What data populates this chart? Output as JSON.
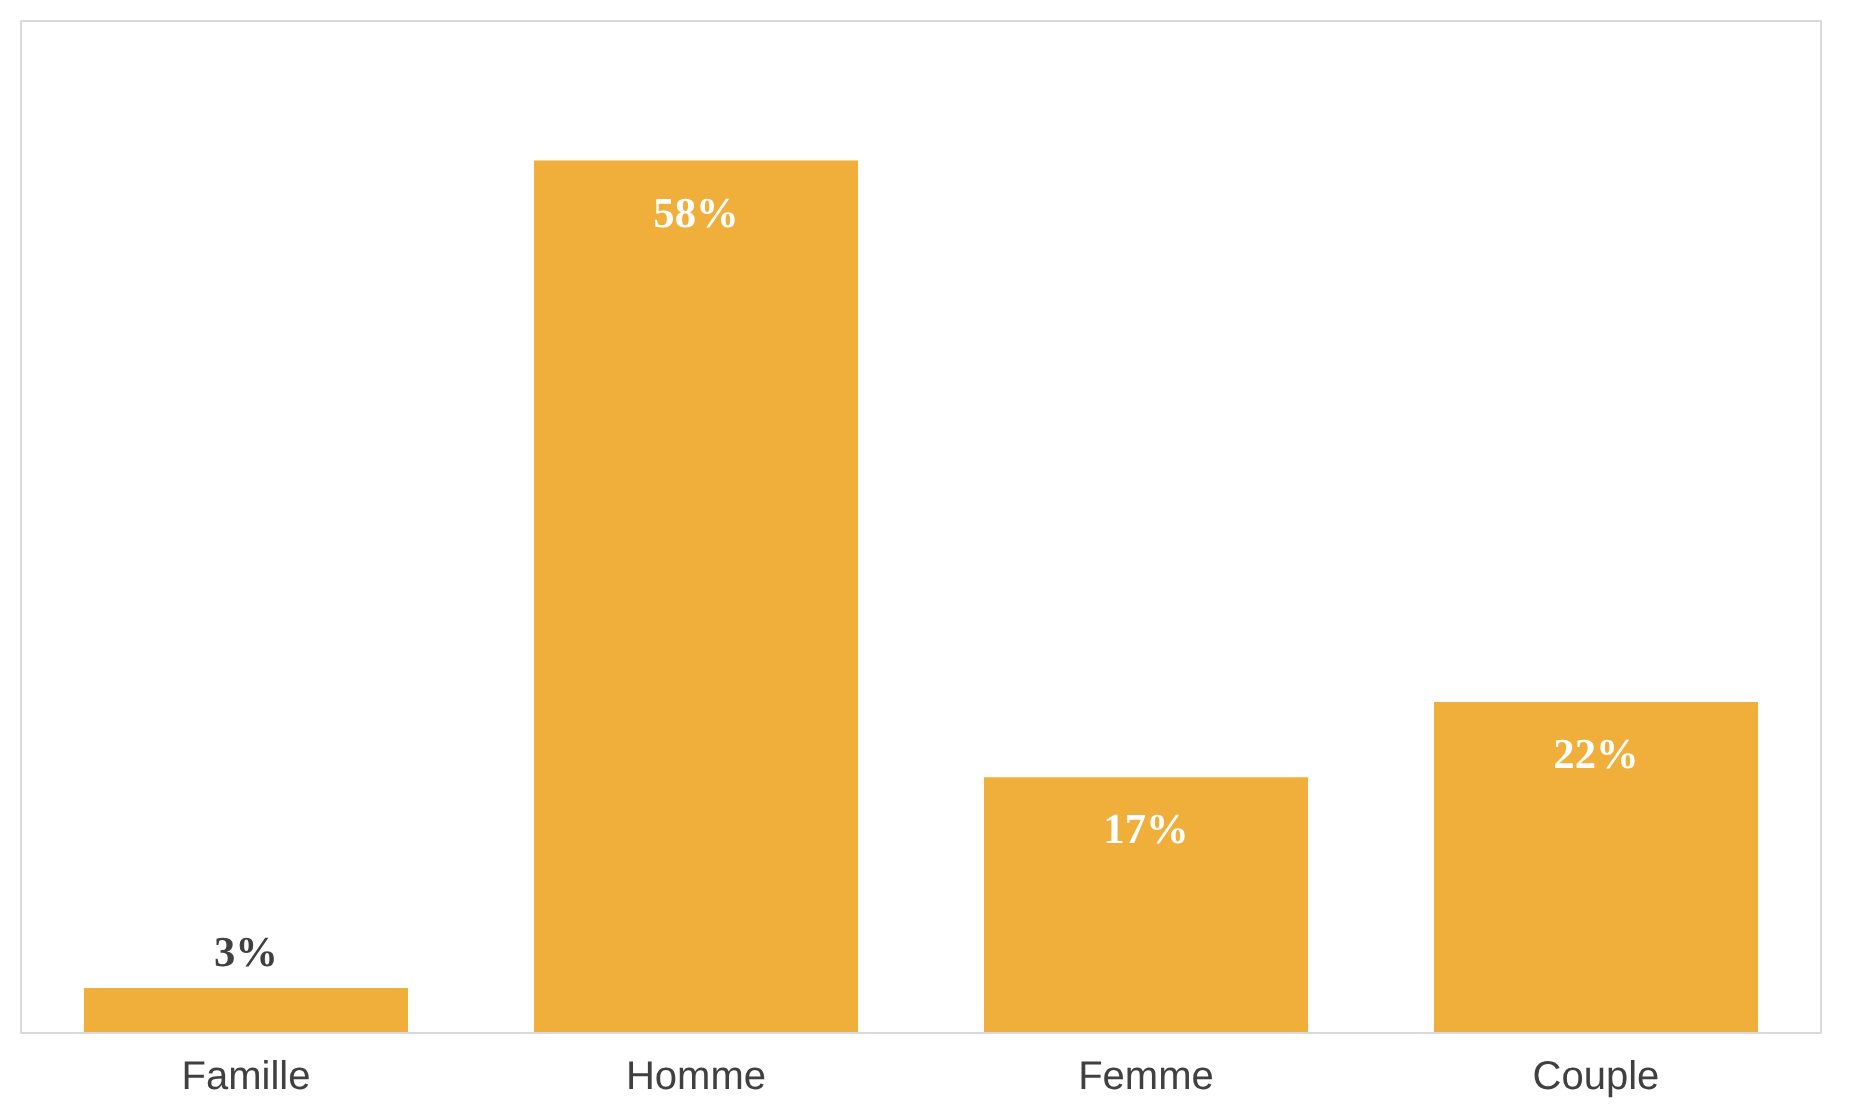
{
  "chart_data": {
    "type": "bar",
    "categories": [
      "Famille",
      "Homme",
      "Femme",
      "Couple"
    ],
    "values": [
      3,
      58,
      17,
      22
    ],
    "value_labels": [
      "3%",
      "58%",
      "17%",
      "22%"
    ],
    "color": "#f0ae3a"
  }
}
